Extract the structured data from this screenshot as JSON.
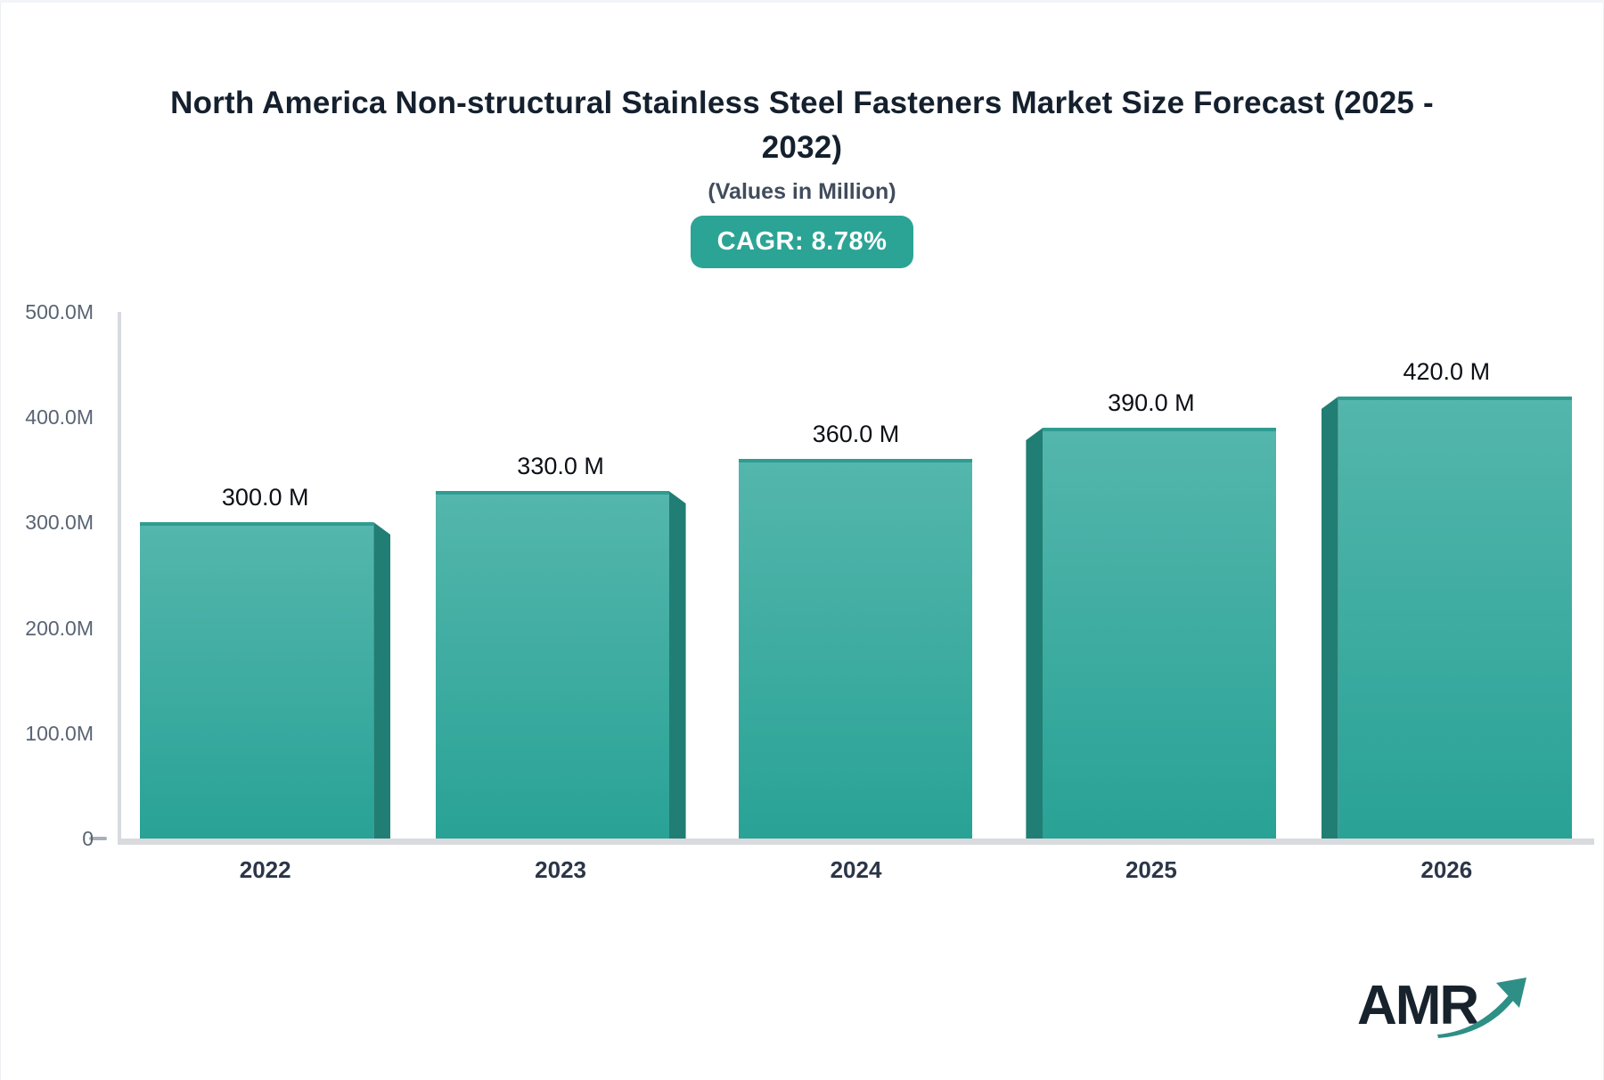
{
  "header": {
    "title": "North America Non-structural Stainless Steel Fasteners Market Size Forecast (2025 - 2032)",
    "subtitle": "(Values in Million)",
    "cagr_badge": "CAGR: 8.78%"
  },
  "chart_data": {
    "type": "bar",
    "title": "North America Non-structural Stainless Steel Fasteners Market Size Forecast (2025 - 2032)",
    "subtitle": "(Values in Million)",
    "cagr_percent": 8.78,
    "categories": [
      "2022",
      "2023",
      "2024",
      "2025",
      "2026"
    ],
    "values": [
      300,
      330,
      360,
      390,
      420
    ],
    "value_labels": [
      "300.0 M",
      "330.0 M",
      "360.0 M",
      "390.0 M",
      "420.0 M"
    ],
    "ylabel": "",
    "xlabel": "",
    "ylim": [
      0,
      500
    ],
    "y_ticks": [
      "500.0M",
      "400.0M",
      "300.0M",
      "200.0M",
      "100.0M",
      "0"
    ],
    "grid": false,
    "legend": false,
    "style": "3d-bars",
    "colors": {
      "bar_top": "#54b6ac",
      "bar_bottom": "#29a296",
      "bar_side": "#217e74",
      "bar_top_edge": "#2f9c91",
      "badge_bg": "#2ba495",
      "axis": "#d8dade"
    }
  },
  "logo": {
    "text": "AMR",
    "text_color": "#17222c",
    "arrow_color": "#2e8f86"
  }
}
